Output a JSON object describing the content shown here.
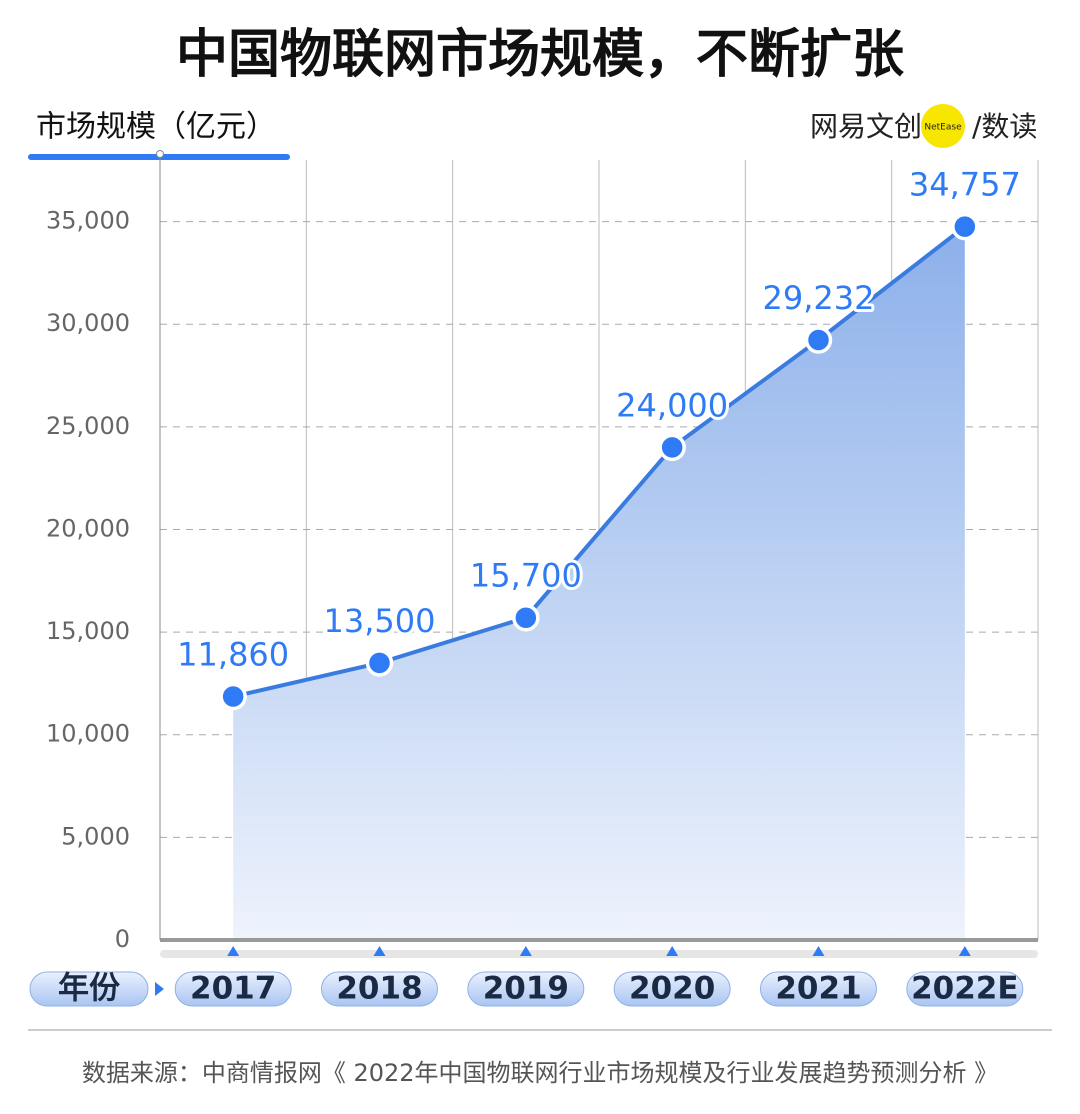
{
  "chart_data": {
    "type": "line",
    "title": "中国物联网市场规模，不断扩张",
    "y_label": "市场规模（亿元）",
    "x_label": "年份",
    "logo": {
      "brand": "网易文创",
      "badge": "NetEase",
      "column": "/数读"
    },
    "source": "数据来源：中商情报网《 2022年中国物联网行业市场规模及行业发展趋势预测分析 》",
    "categories": [
      "2017",
      "2018",
      "2019",
      "2020",
      "2021",
      "2022E"
    ],
    "values": [
      11860,
      13500,
      15700,
      24000,
      29232,
      34757
    ],
    "value_labels": [
      "11,860",
      "13,500",
      "15,700",
      "24,000",
      "29,232",
      "34,757"
    ],
    "color": "#2f7bf5",
    "ylim": [
      0,
      38000
    ],
    "yticks": [
      0,
      {
        "value": 5000,
        "label": "5,000"
      },
      {
        "value": 10000,
        "label": "10,000"
      },
      {
        "value": 15000,
        "label": "15,000"
      },
      {
        "value": 20000,
        "label": "20,000"
      },
      {
        "value": 25000,
        "label": "25,000"
      },
      {
        "value": 30000,
        "label": "30,000"
      },
      {
        "value": 35000,
        "label": "35,000"
      }
    ],
    "grid": true
  }
}
